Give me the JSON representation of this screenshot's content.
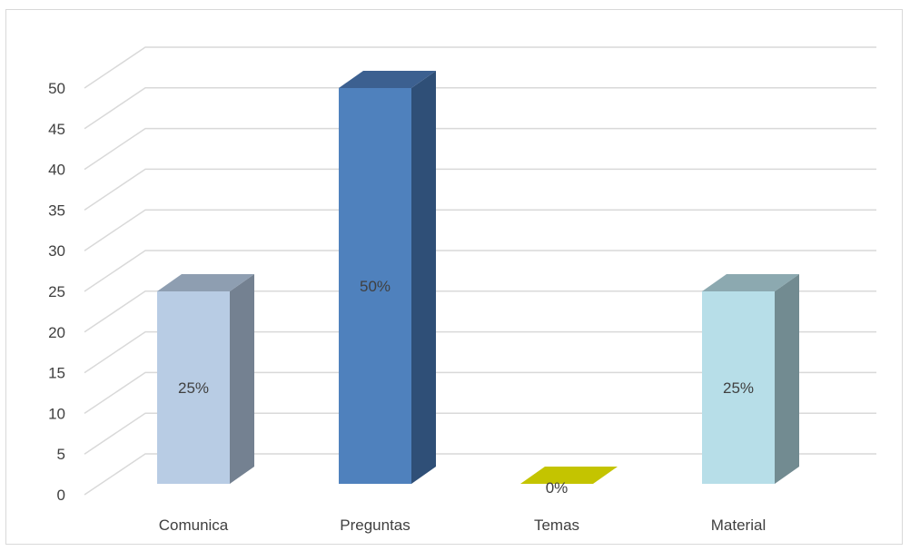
{
  "chart_data": {
    "type": "bar",
    "three_d": true,
    "categories": [
      "Comunica",
      "Preguntas",
      "Temas",
      "Material"
    ],
    "values": [
      25,
      50,
      0,
      25
    ],
    "data_labels": [
      "25%",
      "50%",
      "0%",
      "25%"
    ],
    "ylim": [
      0,
      50
    ],
    "yticks": [
      0,
      5,
      10,
      15,
      20,
      25,
      30,
      35,
      40,
      45,
      50
    ],
    "ytick_labels": [
      "0",
      "5",
      "10",
      "15",
      "20",
      "25",
      "30",
      "35",
      "40",
      "45",
      "50"
    ],
    "grid": true,
    "legend": "none",
    "title": "",
    "xlabel": "",
    "ylabel": "",
    "colors": {
      "Comunica": {
        "front": "#b8cce4",
        "side": "#748191",
        "top": "#8e9eb1"
      },
      "Preguntas": {
        "front": "#4f81bd",
        "side": "#2f4f77",
        "top": "#3c6090"
      },
      "Temas": {
        "front": "#c4c400",
        "side": "#9a9a00",
        "top": "#c4c400"
      },
      "Material": {
        "front": "#b7dee8",
        "side": "#728b91",
        "top": "#8ca9b0"
      },
      "grid": "#d9d9d9",
      "text": "#404040"
    }
  }
}
